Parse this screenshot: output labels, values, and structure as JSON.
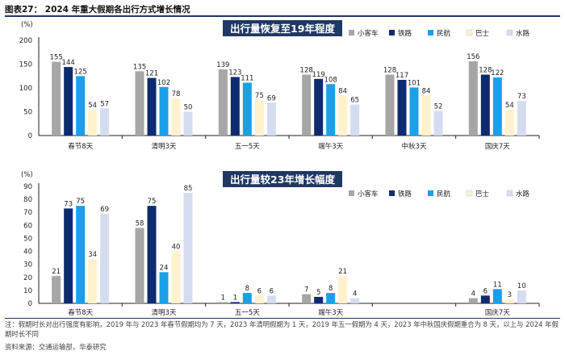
{
  "figure_title": "图表27： 2024 年重大假期各出行方式增长情况",
  "note": "注：假期时长对出行强度有影响，2019 年与 2023 年春节假期均为 7 天，2023 年清明假期为 1 天，2019 年五一假期为 4 天，2023 年中秋国庆假期重合为 8 天，以上与 2024 年假期时长不同",
  "source": "资料来源：交通运输部，华泰研究",
  "colors": {
    "title_box": "#1f3864",
    "series": [
      "#a6a6a6",
      "#0f2b6f",
      "#1aa0e8",
      "#fff2cc",
      "#d6dcf0"
    ]
  },
  "chart_data": [
    {
      "type": "bar",
      "title": "出行量恢复至19年程度",
      "ylabel": "(%)",
      "ylim": [
        0,
        200
      ],
      "yticks": [
        0,
        50,
        100,
        150,
        200
      ],
      "categories": [
        "春节8天",
        "清明3天",
        "五一5天",
        "端午3天",
        "中秋3天",
        "国庆7天"
      ],
      "series": [
        {
          "name": "小客车",
          "values": [
            155,
            135,
            139,
            128,
            128,
            156
          ]
        },
        {
          "name": "铁路",
          "values": [
            144,
            121,
            123,
            119,
            117,
            128
          ]
        },
        {
          "name": "民航",
          "values": [
            125,
            102,
            111,
            108,
            101,
            122
          ]
        },
        {
          "name": "巴士",
          "values": [
            54,
            78,
            75,
            84,
            84,
            54
          ]
        },
        {
          "name": "水路",
          "values": [
            57,
            50,
            69,
            65,
            52,
            73
          ]
        }
      ]
    },
    {
      "type": "bar",
      "title": "出行量较23年增长幅度",
      "ylabel": "(%)",
      "ylim": [
        0,
        90
      ],
      "yticks": [
        0,
        10,
        20,
        30,
        40,
        50,
        60,
        70,
        80,
        90
      ],
      "categories": [
        "春节8天",
        "清明3天",
        "五一5天",
        "端午3天",
        "",
        "国庆7天"
      ],
      "series": [
        {
          "name": "小客车",
          "values": [
            21,
            58,
            1,
            7,
            null,
            4
          ]
        },
        {
          "name": "铁路",
          "values": [
            73,
            75,
            1,
            5,
            null,
            6
          ]
        },
        {
          "name": "民航",
          "values": [
            75,
            24,
            8,
            8,
            null,
            11
          ]
        },
        {
          "name": "巴士",
          "values": [
            34,
            40,
            6,
            21,
            null,
            3
          ]
        },
        {
          "name": "水路",
          "values": [
            69,
            85,
            6,
            4,
            null,
            10
          ]
        }
      ]
    }
  ]
}
